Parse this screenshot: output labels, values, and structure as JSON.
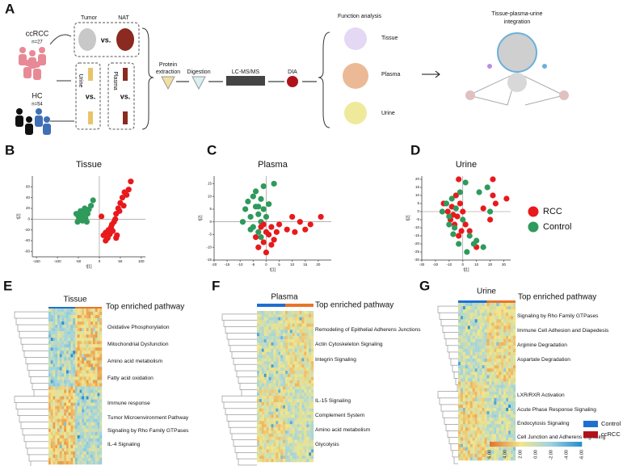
{
  "panels": {
    "A": {
      "label": "A",
      "cohorts": [
        {
          "name": "ccRCC",
          "n": "n=27"
        },
        {
          "name": "HC",
          "n": "n=54"
        }
      ],
      "samples": {
        "tumor": "Tumor",
        "nat": "NAT",
        "urine": "Urine",
        "plasma": "Plasma",
        "vs": [
          "vs.",
          "vs.",
          "vs."
        ]
      },
      "steps": {
        "protein": [
          "Protein",
          "extraction"
        ],
        "digestion": "Digestion",
        "lcms": "LC-MS/MS",
        "dia": "DIA"
      },
      "function_analysis": {
        "title": "Function analysis",
        "items": [
          "Tissue",
          "Plasma",
          "Urine"
        ]
      },
      "integration": [
        "Tissue-plasma-urine",
        "integration"
      ]
    },
    "E": {
      "label": "E",
      "title": "Tissue",
      "subtitle": "Top enriched pathway",
      "pathways": [
        "Oxidative Phosphorylation",
        "Mitochondrial Dysfunction",
        "Amino acid metabolism",
        "Fatty acid oxidation",
        "Immune response",
        "Tumor Microenvironment Pathway",
        "Signaling by Rho Family GTPases",
        "IL-4 Signaling"
      ]
    },
    "F": {
      "label": "F",
      "title": "Plasma",
      "subtitle": "Top enriched pathway",
      "pathways": [
        "Remodeling of Epithelial Adherens Junctions",
        "Actin Cytoskeleton Signaling",
        "Integrin Signaling",
        "IL-15 Signaling",
        "Complement System",
        "Amino acid metabolism",
        "Glycolysis"
      ]
    },
    "G": {
      "label": "G",
      "title": "Urine",
      "subtitle": "Top enriched pathway",
      "pathways": [
        "Signaling by Rho Family GTPases",
        "Immune Cell Adhesion and Diapedesis",
        "Arginine Degradation",
        "Aspartate Degradation",
        "LXR/RXR Activation",
        "Acute Phase Response Signaling",
        "Endocytosis Signaling",
        "Cell Junction and Adherens Signaling"
      ],
      "colorbar": [
        "6.00",
        "4.00",
        "2.00",
        "0.00",
        "-2.00",
        "-4.00",
        "-6.00"
      ],
      "legend": [
        {
          "name": "Control",
          "color": "#1f6fd1"
        },
        {
          "name": "ccRCC",
          "color": "#b0121b"
        }
      ]
    }
  },
  "chart_data": [
    {
      "type": "scatter",
      "label": "B",
      "title": "Tissue",
      "x_label": "t[1]",
      "y_label": "t[2]",
      "xlim": [
        -160,
        110
      ],
      "ylim": [
        -70,
        80
      ],
      "xticks": [
        -150,
        -100,
        -50,
        0,
        50,
        100
      ],
      "yticks": [
        -60,
        -40,
        -20,
        0,
        20,
        40,
        60
      ],
      "series": [
        {
          "color": "#2e9a5c",
          "x": [
            -55,
            -50,
            -48,
            -45,
            -42,
            -40,
            -38,
            -35,
            -33,
            -30,
            -28,
            -25,
            -20,
            -15,
            -45,
            -52,
            -35,
            -30
          ],
          "values": [
            10,
            5,
            0,
            15,
            8,
            -3,
            12,
            20,
            2,
            -5,
            10,
            18,
            25,
            35,
            -2,
            -5,
            5,
            15
          ]
        },
        {
          "color": "#e8191c",
          "x": [
            10,
            15,
            20,
            22,
            25,
            28,
            30,
            32,
            35,
            38,
            40,
            42,
            45,
            48,
            50,
            55,
            58,
            60,
            65,
            70,
            75,
            5,
            15,
            40
          ],
          "values": [
            -30,
            -25,
            -35,
            -20,
            -28,
            -15,
            -10,
            -22,
            -5,
            0,
            10,
            -30,
            20,
            15,
            30,
            40,
            25,
            50,
            45,
            55,
            70,
            5,
            -40,
            -35
          ]
        }
      ]
    },
    {
      "type": "scatter",
      "label": "C",
      "title": "Plasma",
      "x_label": "t[1]",
      "y_label": "t[2]",
      "xlim": [
        -20,
        25
      ],
      "ylim": [
        -15,
        18
      ],
      "xticks": [
        -20,
        -15,
        -10,
        -5,
        0,
        5,
        10,
        15,
        20
      ],
      "yticks": [
        -15,
        -10,
        -5,
        0,
        5,
        10,
        15
      ],
      "series": [
        {
          "color": "#2e9a5c",
          "x": [
            -8,
            -7,
            -6,
            -5,
            -5,
            -4,
            -4,
            -3,
            -3,
            -2,
            -2,
            -1,
            -1,
            0,
            1,
            -6,
            -9,
            3,
            -2,
            -3
          ],
          "values": [
            5,
            8,
            2,
            10,
            -2,
            6,
            12,
            3,
            -4,
            9,
            0,
            5,
            14,
            2,
            7,
            -3,
            0,
            15,
            -6,
            6
          ]
        },
        {
          "color": "#e8191c",
          "x": [
            -4,
            -3,
            -2,
            -1,
            0,
            0,
            1,
            2,
            3,
            4,
            5,
            8,
            10,
            11,
            13,
            15,
            17,
            21,
            -1,
            2
          ],
          "values": [
            -6,
            -10,
            -2,
            -8,
            -4,
            -12,
            -5,
            -2,
            -7,
            -4,
            -1,
            -3,
            2,
            -4,
            0,
            -3,
            -1,
            2,
            -1,
            -9
          ]
        }
      ]
    },
    {
      "type": "scatter",
      "label": "D",
      "title": "Urine",
      "x_label": "t[1]",
      "y_label": "t[2]",
      "xlim": [
        -30,
        35
      ],
      "ylim": [
        -30,
        22
      ],
      "xticks": [
        -30,
        -20,
        -10,
        0,
        10,
        20,
        30
      ],
      "yticks": [
        -30,
        -25,
        -20,
        -15,
        -10,
        -5,
        0,
        5,
        10,
        15,
        20
      ],
      "series": [
        {
          "name": "RCC",
          "color": "#e8191c",
          "x": [
            -14,
            -11,
            -9,
            -8,
            -6,
            -5,
            -4,
            -3,
            -2,
            -1,
            0,
            2,
            5,
            10,
            15,
            20,
            22,
            24,
            22,
            32,
            -7,
            -3
          ],
          "values": [
            5,
            0,
            -5,
            3,
            -8,
            10,
            -3,
            20,
            5,
            -12,
            0,
            -8,
            -12,
            -22,
            2,
            -5,
            10,
            5,
            20,
            8,
            -2,
            -15
          ]
        },
        {
          "name": "Control",
          "color": "#2e9a5c",
          "x": [
            -15,
            -12,
            -10,
            -8,
            -6,
            -5,
            -3,
            -2,
            0,
            2,
            5,
            10,
            12,
            15,
            18,
            20,
            -10,
            -7,
            3,
            8
          ],
          "values": [
            0,
            5,
            -3,
            8,
            -10,
            2,
            -20,
            12,
            -5,
            18,
            -15,
            -18,
            12,
            -22,
            15,
            0,
            -8,
            -14,
            -25,
            -20
          ]
        }
      ]
    }
  ]
}
